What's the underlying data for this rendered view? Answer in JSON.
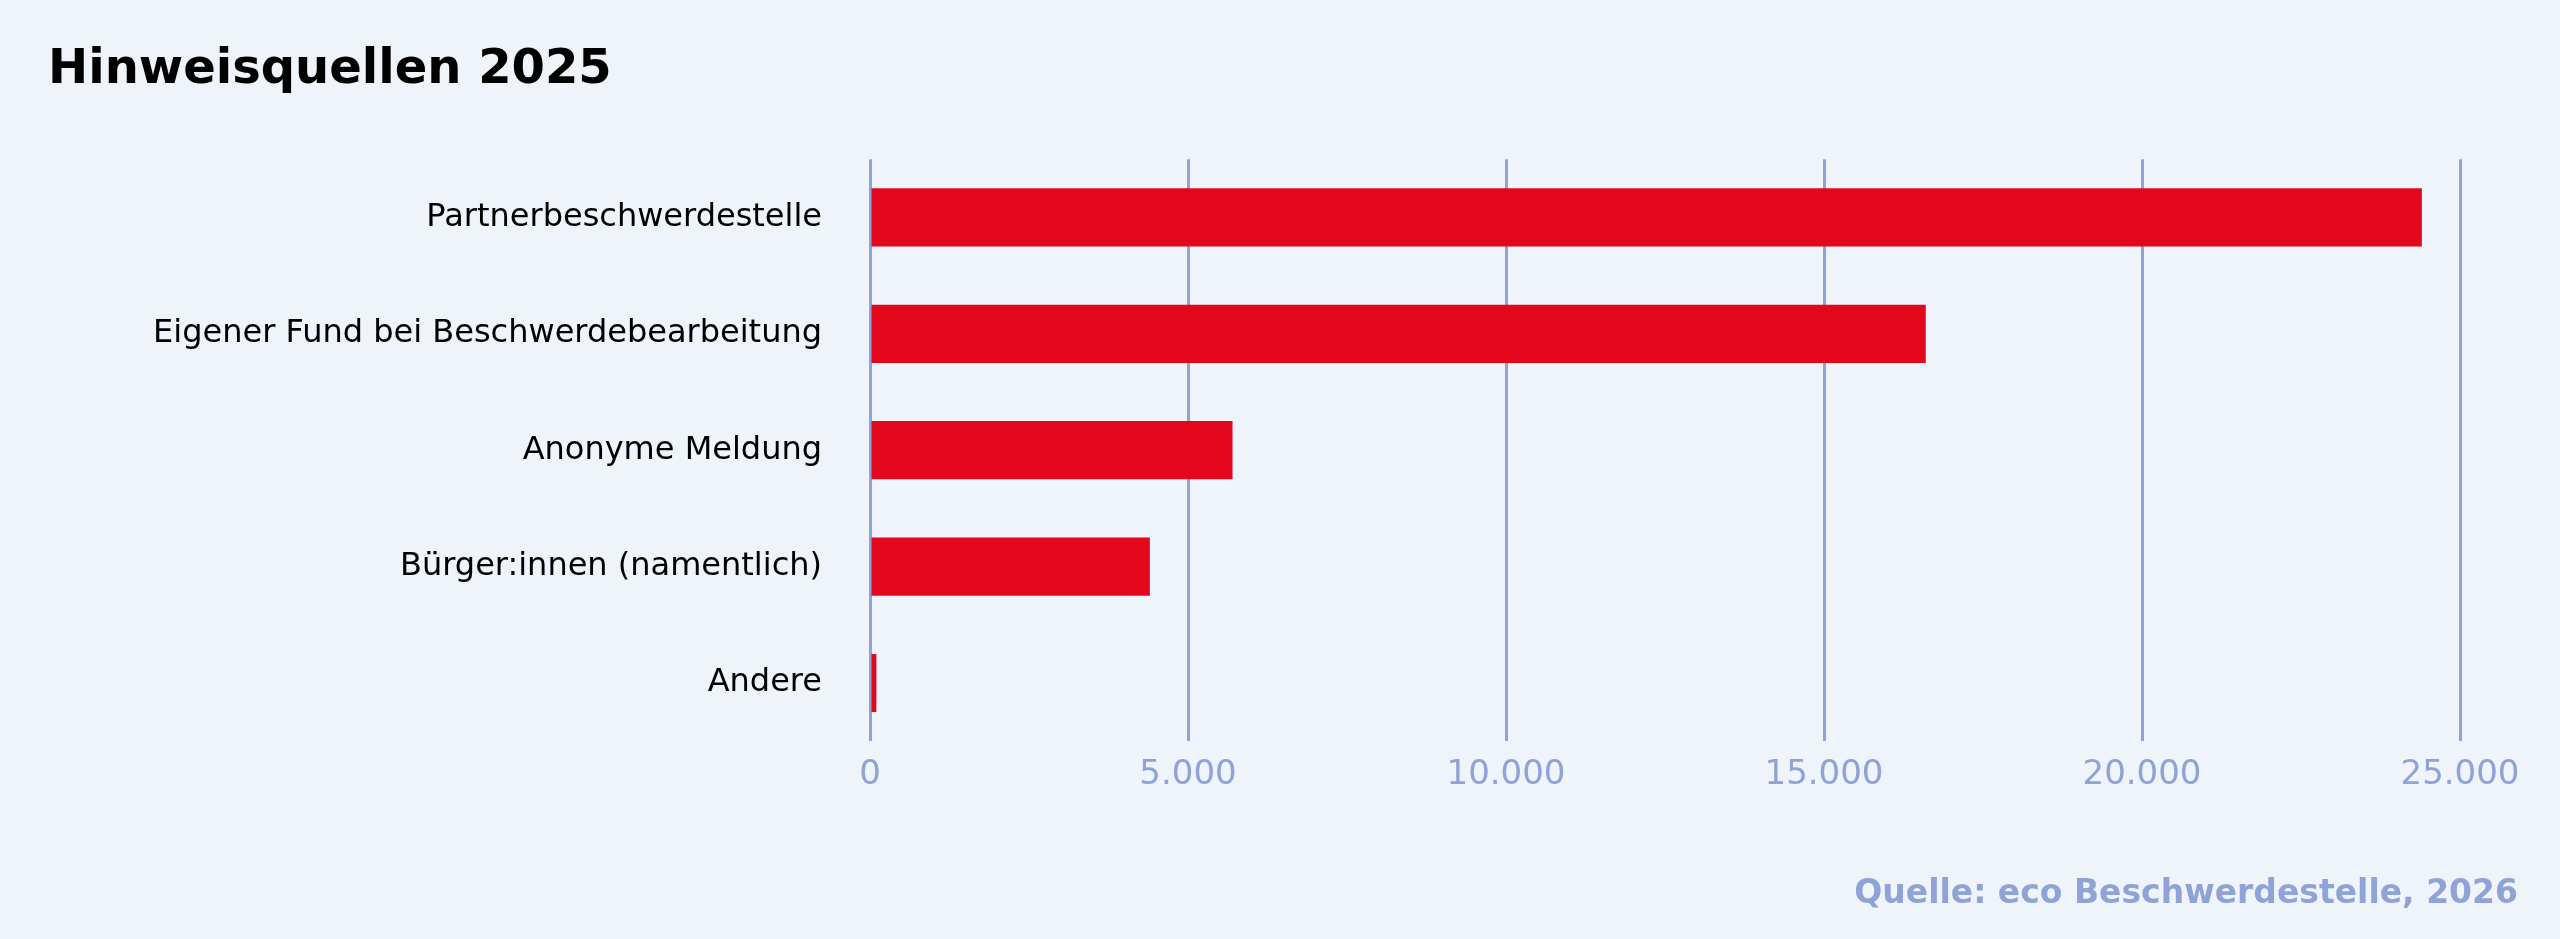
{
  "chart_data": {
    "type": "bar",
    "orientation": "horizontal",
    "title": "Hinweisquellen 2025",
    "categories": [
      "Partnerbeschwerdestelle",
      "Eigener Fund bei Beschwerdebearbeitung",
      "Anonyme Meldung",
      "Bürger:innen (namentlich)",
      "Andere"
    ],
    "values": [
      24400,
      16600,
      5700,
      4400,
      100
    ],
    "color": "#e2071b",
    "xlim": [
      0,
      25000
    ],
    "xticks": [
      0,
      {
        "value": 5000,
        "label": "5.000"
      },
      {
        "value": 10000,
        "label": "10.000"
      },
      {
        "value": 15000,
        "label": "15.000"
      },
      {
        "value": 20000,
        "label": "20.000"
      },
      {
        "value": 25000,
        "label": "25.000"
      }
    ],
    "grid": "x",
    "legend": false,
    "annotations": [
      "Quelle: eco Beschwerdestelle, 2026"
    ]
  }
}
